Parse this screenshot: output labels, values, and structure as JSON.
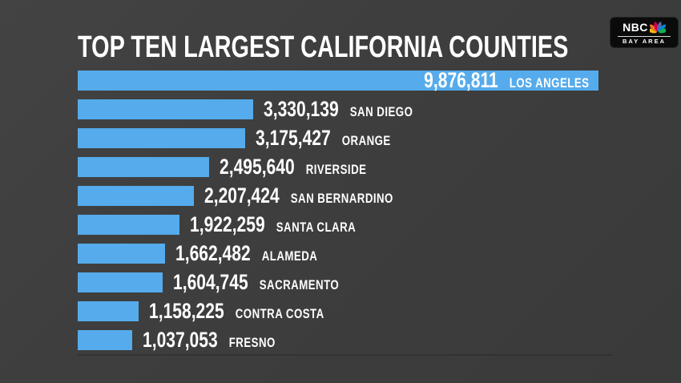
{
  "header": {
    "title": "TOP TEN LARGEST CALIFORNIA COUNTIES"
  },
  "logo": {
    "network": "NBC",
    "region": "BAY AREA",
    "peacock_feather_colors": [
      "#FCB711",
      "#F37021",
      "#CC004C",
      "#6460AA",
      "#0089D0",
      "#0DB14B"
    ]
  },
  "chart_data": {
    "type": "bar",
    "orientation": "horizontal",
    "title": "TOP TEN LARGEST CALIFORNIA COUNTIES",
    "categories": [
      "LOS ANGELES",
      "SAN DIEGO",
      "ORANGE",
      "RIVERSIDE",
      "SAN BERNARDINO",
      "SANTA CLARA",
      "ALAMEDA",
      "SACRAMENTO",
      "CONTRA COSTA",
      "FRESNO"
    ],
    "values": [
      9876811,
      3330139,
      3175427,
      2495640,
      2207424,
      1922259,
      1662482,
      1604745,
      1158225,
      1037053
    ],
    "value_labels": [
      "9,876,811",
      "3,330,139",
      "3,175,427",
      "2,495,640",
      "2,207,424",
      "1,922,259",
      "1,662,482",
      "1,604,745",
      "1,158,225",
      "1,037,053"
    ],
    "xlim": [
      0,
      9876811
    ],
    "grid": false,
    "legend": false,
    "bar_color": "#55abec",
    "background_color": "#3e3e3e",
    "text_color": "#ffffff",
    "value_label_position": "outside-end (inside-end for first bar)"
  }
}
